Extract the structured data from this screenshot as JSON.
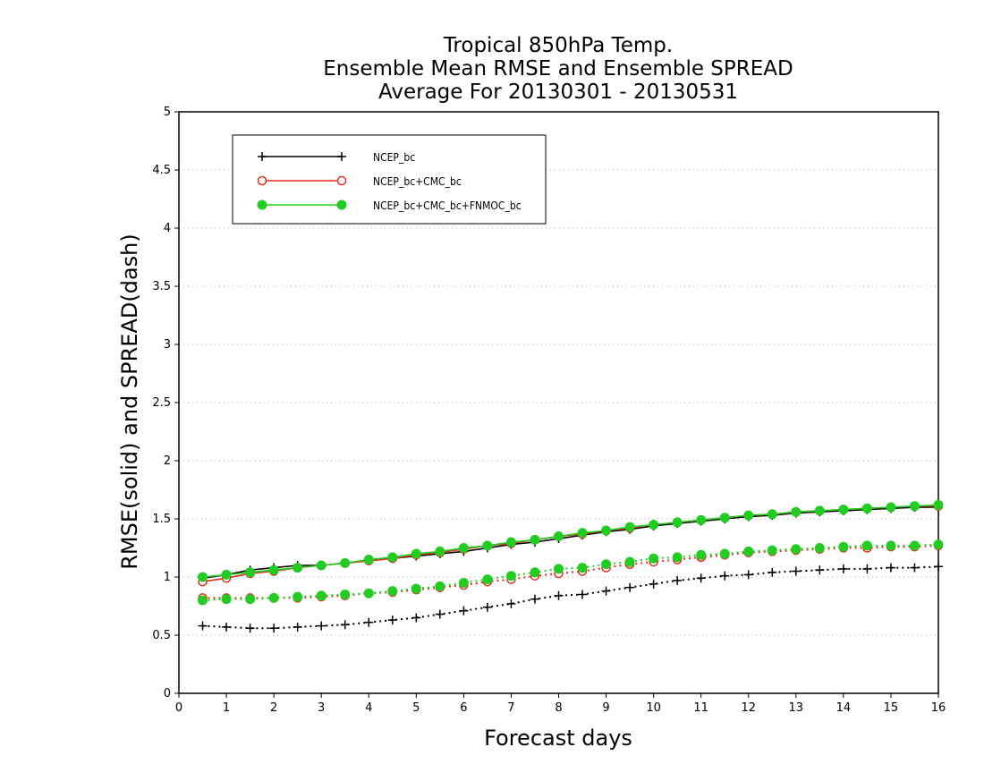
{
  "chart_data": {
    "type": "line",
    "title": [
      "Tropical 850hPa Temp.",
      "Ensemble Mean RMSE and Ensemble SPREAD",
      "Average For 20130301 - 20130531"
    ],
    "xlabel": "Forecast days",
    "ylabel": "RMSE(solid) and SPREAD(dash)",
    "xlim": [
      0,
      16
    ],
    "ylim": [
      0,
      5
    ],
    "x_ticks": [
      "0",
      "1",
      "2",
      "3",
      "4",
      "5",
      "6",
      "7",
      "8",
      "9",
      "10",
      "11",
      "12",
      "13",
      "14",
      "15",
      "16"
    ],
    "y_ticks": [
      "0",
      "0.5",
      "1",
      "1.5",
      "2",
      "2.5",
      "3",
      "3.5",
      "4",
      "4.5",
      "5"
    ],
    "grid": "horizontal dotted",
    "legend_position": "top-left",
    "x": [
      0.5,
      1,
      1.5,
      2,
      2.5,
      3,
      3.5,
      4,
      4.5,
      5,
      5.5,
      6,
      6.5,
      7,
      7.5,
      8,
      8.5,
      9,
      9.5,
      10,
      10.5,
      11,
      11.5,
      12,
      12.5,
      13,
      13.5,
      14,
      14.5,
      15,
      15.5,
      16
    ],
    "series": [
      {
        "name": "NCEP_bc",
        "color": "#000000",
        "marker": "plus",
        "rmse": [
          0.99,
          1.02,
          1.06,
          1.08,
          1.1,
          1.1,
          1.12,
          1.14,
          1.16,
          1.18,
          1.2,
          1.22,
          1.25,
          1.28,
          1.3,
          1.33,
          1.36,
          1.39,
          1.41,
          1.44,
          1.46,
          1.48,
          1.5,
          1.52,
          1.53,
          1.55,
          1.56,
          1.57,
          1.58,
          1.59,
          1.6,
          1.6
        ],
        "spread": [
          0.58,
          0.57,
          0.56,
          0.56,
          0.57,
          0.58,
          0.59,
          0.61,
          0.63,
          0.65,
          0.68,
          0.71,
          0.74,
          0.77,
          0.81,
          0.84,
          0.85,
          0.88,
          0.91,
          0.94,
          0.97,
          0.99,
          1.01,
          1.02,
          1.04,
          1.05,
          1.06,
          1.07,
          1.07,
          1.08,
          1.08,
          1.09
        ]
      },
      {
        "name": "NCEP_bc+CMC_bc",
        "color": "#e03020",
        "marker": "circle-open",
        "rmse": [
          0.96,
          0.99,
          1.03,
          1.05,
          1.08,
          1.1,
          1.12,
          1.14,
          1.16,
          1.19,
          1.21,
          1.24,
          1.27,
          1.29,
          1.32,
          1.35,
          1.37,
          1.4,
          1.42,
          1.45,
          1.47,
          1.49,
          1.51,
          1.53,
          1.54,
          1.56,
          1.57,
          1.58,
          1.59,
          1.6,
          1.61,
          1.61
        ],
        "spread": [
          0.82,
          0.82,
          0.82,
          0.82,
          0.82,
          0.83,
          0.84,
          0.86,
          0.87,
          0.89,
          0.91,
          0.93,
          0.96,
          0.98,
          1.01,
          1.03,
          1.05,
          1.08,
          1.11,
          1.13,
          1.15,
          1.17,
          1.19,
          1.21,
          1.22,
          1.23,
          1.24,
          1.25,
          1.25,
          1.26,
          1.26,
          1.27
        ]
      },
      {
        "name": "NCEP_bc+CMC_bc+FNMOC_bc",
        "color": "#22cc22",
        "marker": "circle-filled",
        "rmse": [
          1.0,
          1.02,
          1.04,
          1.06,
          1.08,
          1.1,
          1.12,
          1.15,
          1.17,
          1.2,
          1.22,
          1.25,
          1.27,
          1.3,
          1.32,
          1.35,
          1.38,
          1.4,
          1.43,
          1.45,
          1.47,
          1.49,
          1.51,
          1.53,
          1.54,
          1.56,
          1.57,
          1.58,
          1.59,
          1.6,
          1.61,
          1.62
        ],
        "spread": [
          0.8,
          0.81,
          0.81,
          0.82,
          0.83,
          0.84,
          0.85,
          0.86,
          0.88,
          0.9,
          0.92,
          0.95,
          0.98,
          1.01,
          1.04,
          1.07,
          1.08,
          1.11,
          1.13,
          1.16,
          1.17,
          1.19,
          1.2,
          1.22,
          1.23,
          1.24,
          1.25,
          1.26,
          1.27,
          1.27,
          1.27,
          1.28
        ]
      }
    ]
  }
}
